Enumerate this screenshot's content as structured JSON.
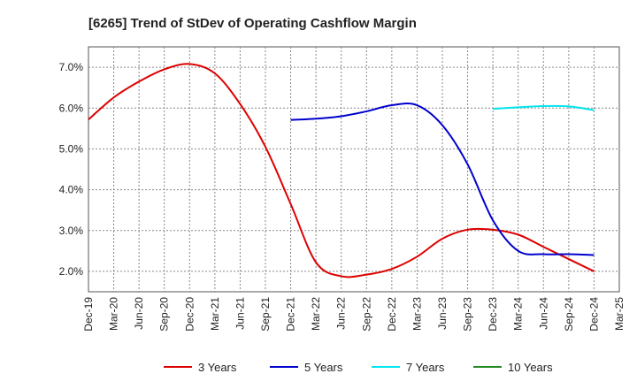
{
  "chart_data": {
    "type": "line",
    "title": "[6265]  Trend of StDev of Operating Cashflow Margin",
    "xlabel": "",
    "ylabel": "",
    "x_tick_labels": [
      "Dec-19",
      "Mar-20",
      "Jun-20",
      "Sep-20",
      "Dec-20",
      "Mar-21",
      "Jun-21",
      "Sep-21",
      "Dec-21",
      "Mar-22",
      "Jun-22",
      "Sep-22",
      "Dec-22",
      "Mar-23",
      "Jun-23",
      "Sep-23",
      "Dec-23",
      "Mar-24",
      "Jun-24",
      "Sep-24",
      "Dec-24",
      "Mar-25"
    ],
    "y_tick_labels": [
      "7.0%",
      "6.0%",
      "5.0%",
      "4.0%",
      "3.0%",
      "2.0%"
    ],
    "y_ticks": [
      7.0,
      6.0,
      5.0,
      4.0,
      3.0,
      2.0
    ],
    "ylim": [
      1.5,
      7.5
    ],
    "grid": true,
    "legend_position": "bottom",
    "series": [
      {
        "name": "3 Years",
        "color": "#dd0000",
        "start_index": 0,
        "values": [
          5.72,
          6.26,
          6.65,
          6.95,
          7.08,
          6.85,
          6.1,
          5.05,
          3.65,
          2.22,
          1.88,
          1.92,
          2.06,
          2.36,
          2.8,
          3.02,
          3.02,
          2.9,
          2.6,
          2.3,
          2.0
        ]
      },
      {
        "name": "5 Years",
        "color": "#0000cc",
        "start_index": 8,
        "values": [
          5.71,
          5.74,
          5.8,
          5.92,
          6.07,
          6.07,
          5.58,
          4.62,
          3.25,
          2.5,
          2.42,
          2.42,
          2.4
        ]
      },
      {
        "name": "7 Years",
        "color": "#00e5ee",
        "start_index": 16,
        "values": [
          5.98,
          6.02,
          6.05,
          6.04,
          5.95
        ]
      },
      {
        "name": "10 Years",
        "color": "#228b22",
        "start_index": 0,
        "values": []
      }
    ]
  }
}
